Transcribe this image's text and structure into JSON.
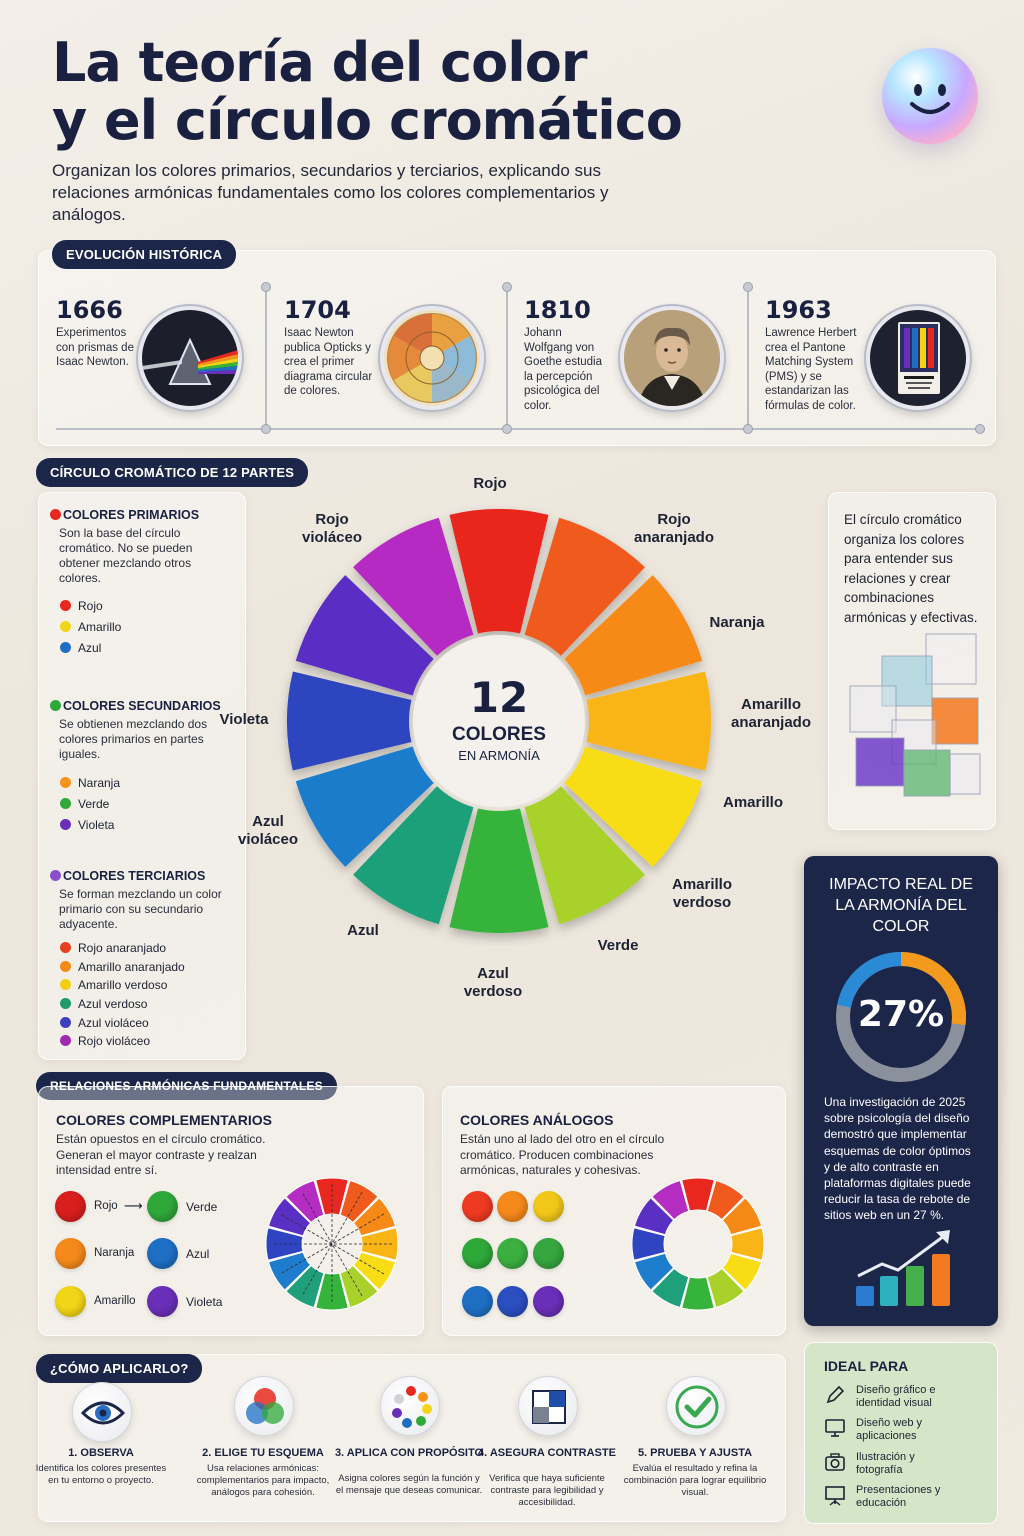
{
  "header": {
    "title_line1": "La teoría del color",
    "title_line2": "y el círculo cromático",
    "subtitle": "Organizan los colores primarios, secundarios y terciarios, explicando sus relaciones armónicas fundamentales como los colores complementarios y análogos."
  },
  "timeline": {
    "label": "EVOLUCIÓN HISTÓRICA",
    "events": [
      {
        "year": "1666",
        "text": "Experimentos con prismas de Isaac Newton."
      },
      {
        "year": "1704",
        "text": "Isaac Newton publica Opticks y crea el primer diagrama circular de colores."
      },
      {
        "year": "1810",
        "text": "Johann Wolfgang von Goethe estudia la percepción psicológica del color."
      },
      {
        "year": "1963",
        "text": "Lawrence Herbert crea el Pantone Matching System (PMS) y se estandarizan las fórmulas de color."
      }
    ]
  },
  "wheel_section": {
    "label": "CÍRCULO CROMÁTICO DE 12 PARTES",
    "center_number": "12",
    "center_word": "COLORES",
    "center_sub": "EN ARMONÍA",
    "segments": [
      {
        "name": "Rojo",
        "color": "#e8281f"
      },
      {
        "name": "Rojo anaranjado",
        "color": "#f05a1c"
      },
      {
        "name": "Naranja",
        "color": "#f78a17"
      },
      {
        "name": "Amarillo anaranjado",
        "color": "#f9b416"
      },
      {
        "name": "Amarillo",
        "color": "#f7dc16"
      },
      {
        "name": "Amarillo verdoso",
        "color": "#a8d12a"
      },
      {
        "name": "Verde",
        "color": "#36b33a"
      },
      {
        "name": "Azul verdoso",
        "color": "#1fa07a"
      },
      {
        "name": "Azul",
        "color": "#1e7ccc"
      },
      {
        "name": "Azul violáceo",
        "color": "#2e44c0"
      },
      {
        "name": "Violeta",
        "color": "#5a2fc4"
      },
      {
        "name": "Rojo violáceo",
        "color": "#b52cc2"
      }
    ],
    "labels": {
      "rojo": "Rojo",
      "rojo_anaranjado": "Rojo anaranjado",
      "naranja": "Naranja",
      "amarillo_anaranjado": "Amarillo anaranjado",
      "amarillo": "Amarillo",
      "amarillo_verdoso": "Amarillo verdoso",
      "verde": "Verde",
      "azul_verdoso": "Azul verdoso",
      "azul": "Azul",
      "azul_violaceo": "Azul violáceo",
      "violeta": "Violeta",
      "rojo_violaceo": "Rojo violáceo"
    },
    "primarios": {
      "title": "COLORES PRIMARIOS",
      "desc": "Son la base del círculo cromático. No se pueden obtener mezclando otros colores.",
      "items": [
        {
          "name": "Rojo",
          "color": "#e8281f"
        },
        {
          "name": "Amarillo",
          "color": "#f2d516"
        },
        {
          "name": "Azul",
          "color": "#1e6fc4"
        }
      ]
    },
    "secundarios": {
      "title": "COLORES SECUNDARIOS",
      "desc": "Se obtienen mezclando dos colores primarios en partes iguales.",
      "items": [
        {
          "name": "Naranja",
          "color": "#f7931a"
        },
        {
          "name": "Verde",
          "color": "#2fa83a"
        },
        {
          "name": "Violeta",
          "color": "#6a2fb8"
        }
      ]
    },
    "terciarios": {
      "title": "COLORES TERCIARIOS",
      "desc": "Se forman mezclando un color primario con su secundario adyacente.",
      "items": [
        {
          "name": "Rojo anaranjado",
          "color": "#e8401c"
        },
        {
          "name": "Amarillo anaranjado",
          "color": "#f58a17"
        },
        {
          "name": "Amarillo verdoso",
          "color": "#f2cf16"
        },
        {
          "name": "Azul verdoso",
          "color": "#1f9a6a"
        },
        {
          "name": "Azul violáceo",
          "color": "#3d3fbf"
        },
        {
          "name": "Rojo violáceo",
          "color": "#a22ab0"
        }
      ]
    },
    "side_text": "El círculo cromático organiza los colores para entender sus relaciones y crear combinaciones armónicas y efectivas."
  },
  "impact": {
    "title": "IMPACTO REAL DE LA ARMONÍA DEL COLOR",
    "value_text": "27%",
    "value": 27,
    "desc": "Una investigación de 2025 sobre psicología del diseño demostró que implementar esquemas de color óptimos y de alto contraste en plataformas digitales puede reducir la tasa de rebote de sitios web en un 27 %."
  },
  "relations": {
    "label": "RELACIONES ARMÓNICAS FUNDAMENTALES",
    "complementarios": {
      "title": "COLORES COMPLEMENTARIOS",
      "desc": "Están opuestos en el círculo cromático. Generan el mayor contraste y realzan intensidad entre sí.",
      "pairs": [
        {
          "a": "Rojo",
          "a_color": "#d91e1e",
          "b": "Verde",
          "b_color": "#2fa83a"
        },
        {
          "a": "Naranja",
          "a_color": "#f5891a",
          "b": "Azul",
          "b_color": "#1e6fc4"
        },
        {
          "a": "Amarillo",
          "a_color": "#f2d516",
          "b": "Violeta",
          "b_color": "#6a2fb8"
        }
      ]
    },
    "analogos": {
      "title": "COLORES ANÁLOGOS",
      "desc": "Están uno al lado del otro en el círculo cromático. Producen combinaciones armónicas, naturales y cohesivas.",
      "rows": [
        [
          "#ef3a22",
          "#f5891a",
          "#f2c818"
        ],
        [
          "#2fa83a",
          "#3bb040",
          "#36a640"
        ],
        [
          "#1e6fc4",
          "#2a4fc0",
          "#6a2fb8"
        ]
      ]
    }
  },
  "apply": {
    "label": "¿CÓMO APLICARLO?",
    "steps": [
      {
        "title": "1. OBSERVA",
        "desc": "Identifica los colores presentes en tu entorno o proyecto."
      },
      {
        "title": "2. ELIGE TU ESQUEMA",
        "desc": "Usa relaciones armónicas: complementarios para impacto, análogos para cohesión."
      },
      {
        "title": "3. APLICA CON PROPÓSITO",
        "desc": "Asigna colores según la función y el mensaje que deseas comunicar."
      },
      {
        "title": "4. ASEGURA CONTRASTE",
        "desc": "Verifica que haya suficiente contraste para legibilidad y accesibilidad."
      },
      {
        "title": "5. PRUEBA Y AJUSTA",
        "desc": "Evalúa el resultado y refina la combinación para lograr equilibrio visual."
      }
    ]
  },
  "ideal": {
    "title": "IDEAL PARA",
    "items": [
      {
        "text": "Diseño gráfico e identidad visual",
        "icon": "pencil-icon"
      },
      {
        "text": "Diseño web y aplicaciones",
        "icon": "monitor-icon"
      },
      {
        "text": "Ilustración y fotografía",
        "icon": "camera-icon"
      },
      {
        "text": "Presentaciones y educación",
        "icon": "presentation-icon"
      }
    ]
  }
}
